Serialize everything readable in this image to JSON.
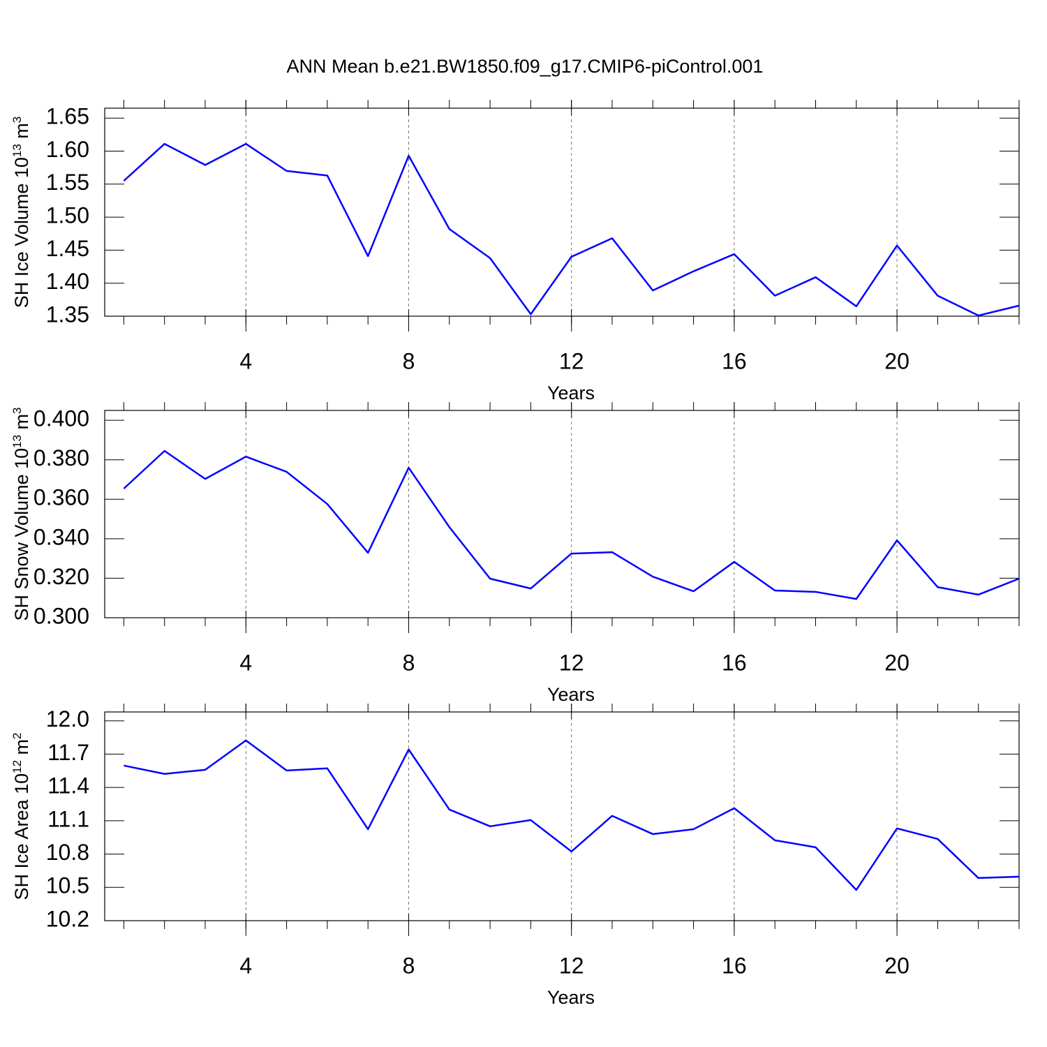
{
  "chart_data": [
    {
      "type": "line",
      "title": "ANN Mean b.e21.BW1850.f09_g17.CMIP6-piControl.001",
      "ylabel_parts": [
        "SH Ice Volume 10",
        "13",
        " m",
        "3"
      ],
      "xlabel": "Years",
      "x": [
        1,
        2,
        3,
        4,
        5,
        6,
        7,
        8,
        9,
        10,
        11,
        12,
        13,
        14,
        15,
        16,
        17,
        18,
        19,
        20,
        21,
        22,
        23
      ],
      "series": [
        {
          "color": "#0000ff",
          "values": [
            1.555,
            1.611,
            1.579,
            1.611,
            1.57,
            1.563,
            1.441,
            1.593,
            1.482,
            1.438,
            1.353,
            1.44,
            1.468,
            1.389,
            1.418,
            1.444,
            1.381,
            1.409,
            1.365,
            1.457,
            1.381,
            1.351,
            1.366
          ]
        }
      ],
      "xlim": [
        0.53,
        23
      ],
      "xticks": [
        4,
        8,
        12,
        16,
        20
      ],
      "ylim": [
        1.35,
        1.665
      ],
      "yticks": [
        1.35,
        {
          "value": 1.4,
          "label": "1.40"
        },
        1.45,
        {
          "value": 1.5,
          "label": "1.50"
        },
        1.55,
        {
          "value": 1.6,
          "label": "1.60"
        },
        1.65
      ],
      "grid": "x-dashed"
    },
    {
      "type": "line",
      "ylabel_parts": [
        "SH Snow Volume 10",
        "13",
        " m",
        "3"
      ],
      "xlabel": "Years",
      "x": [
        1,
        2,
        3,
        4,
        5,
        6,
        7,
        8,
        9,
        10,
        11,
        12,
        13,
        14,
        15,
        16,
        17,
        18,
        19,
        20,
        21,
        22,
        23
      ],
      "series": [
        {
          "color": "#0000ff",
          "values": [
            0.3654,
            0.3845,
            0.3703,
            0.3816,
            0.3739,
            0.3576,
            0.3329,
            0.376,
            0.3459,
            0.3198,
            0.3148,
            0.3325,
            0.3332,
            0.3208,
            0.3134,
            0.3283,
            0.3138,
            0.3131,
            0.3095,
            0.3392,
            0.3155,
            0.3117,
            0.3198
          ]
        }
      ],
      "xlim": [
        0.53,
        23
      ],
      "xticks": [
        4,
        8,
        12,
        16,
        20
      ],
      "ylim": [
        0.3,
        0.405
      ],
      "yticks": [
        {
          "value": 0.3,
          "label": "0.300"
        },
        {
          "value": 0.32,
          "label": "0.320"
        },
        {
          "value": 0.34,
          "label": "0.340"
        },
        {
          "value": 0.36,
          "label": "0.360"
        },
        {
          "value": 0.38,
          "label": "0.380"
        },
        {
          "value": 0.4,
          "label": "0.400"
        }
      ],
      "grid": "x-dashed"
    },
    {
      "type": "line",
      "ylabel_parts": [
        "SH Ice Area 10",
        "12",
        " m",
        "2"
      ],
      "xlabel": "Years",
      "x": [
        1,
        2,
        3,
        4,
        5,
        6,
        7,
        8,
        9,
        10,
        11,
        12,
        13,
        14,
        15,
        16,
        17,
        18,
        19,
        20,
        21,
        22,
        23
      ],
      "series": [
        {
          "color": "#0000ff",
          "values": [
            11.597,
            11.522,
            11.559,
            11.824,
            11.553,
            11.572,
            11.024,
            11.742,
            11.201,
            11.05,
            11.106,
            10.823,
            11.144,
            10.98,
            11.024,
            11.213,
            10.924,
            10.861,
            10.477,
            11.031,
            10.936,
            10.584,
            10.596
          ]
        }
      ],
      "xlim": [
        0.53,
        23
      ],
      "xticks": [
        4,
        8,
        12,
        16,
        20
      ],
      "ylim": [
        10.2,
        12.08
      ],
      "yticks": [
        10.2,
        10.5,
        10.8,
        11.1,
        11.4,
        11.7,
        {
          "value": 12.0,
          "label": "12.0"
        }
      ],
      "grid": "x-dashed"
    }
  ]
}
